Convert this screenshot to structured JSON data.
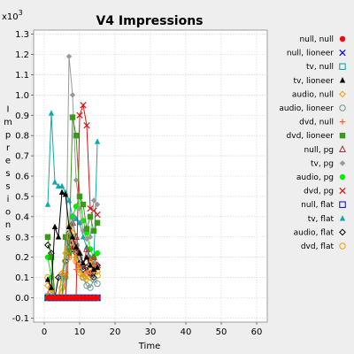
{
  "chart_data": {
    "type": "line",
    "title": "V4 Impressions",
    "xlabel": "Time",
    "ylabel": "Impressions",
    "y_multiplier_label": "x10^3",
    "y_multiplier_base": "x10",
    "y_multiplier_exp": "3",
    "xlim": [
      -3,
      63
    ],
    "ylim": [
      -0.12,
      1.32
    ],
    "x_ticks": [
      0,
      10,
      20,
      30,
      40,
      50,
      60
    ],
    "y_ticks": [
      -0.1,
      0.0,
      0.1,
      0.2,
      0.3,
      0.4,
      0.5,
      0.6,
      0.7,
      0.8,
      0.9,
      1.0,
      1.1,
      1.2,
      1.3
    ],
    "grid": true,
    "legend_position": "right",
    "series": [
      {
        "name": "null, null",
        "color": "#ff0000",
        "marker": "circle-filled",
        "x": [
          1,
          2,
          3,
          4,
          5,
          6,
          7,
          8,
          9,
          10,
          11,
          12,
          13,
          14,
          15
        ],
        "y": [
          0,
          0,
          0,
          0,
          0,
          0,
          0,
          0,
          0,
          0,
          0,
          0,
          0,
          0,
          0
        ]
      },
      {
        "name": "null, lioneer",
        "color": "#0000ff",
        "marker": "x",
        "x": [
          1,
          2,
          3,
          4,
          5,
          6,
          7,
          8,
          9,
          10,
          11,
          12,
          13,
          14,
          15
        ],
        "y": [
          0,
          0,
          0,
          0,
          0,
          0,
          0,
          0,
          0,
          0,
          0,
          0,
          0,
          0,
          0
        ]
      },
      {
        "name": "tv, null",
        "color": "#00a0a0",
        "marker": "square-open",
        "x": [
          1,
          2,
          3,
          4,
          5,
          6,
          7,
          8,
          9,
          10,
          11,
          12,
          13,
          14,
          15
        ],
        "y": [
          0,
          0,
          0,
          0,
          0,
          0,
          0,
          0,
          0,
          0,
          0,
          0,
          0,
          0,
          0
        ]
      },
      {
        "name": "tv, lioneer",
        "color": "#000000",
        "marker": "triangle-filled",
        "x": [
          1,
          2,
          3,
          4,
          5,
          6,
          7,
          8,
          9,
          10,
          11,
          12,
          13,
          14,
          15
        ],
        "y": [
          0.09,
          0.05,
          0.35,
          0.3,
          0.52,
          0.51,
          0.35,
          0.3,
          0.25,
          0.22,
          0.17,
          0.2,
          0.16,
          0.14,
          0.15
        ]
      },
      {
        "name": "audio, null",
        "color": "#f0a000",
        "marker": "diamond-open",
        "x": [
          1,
          2,
          3,
          4,
          5,
          6,
          7,
          8,
          9,
          10,
          11,
          12,
          13,
          14,
          15
        ],
        "y": [
          0.06,
          0.04,
          0,
          0,
          0.12,
          0.22,
          0.35,
          0.32,
          0.2,
          0.12,
          0.1,
          0.09,
          0.18,
          0.14,
          0.13
        ]
      },
      {
        "name": "audio, lioneer",
        "color": "#6a9696",
        "marker": "circle-open",
        "x": [
          1,
          2,
          3,
          4,
          5,
          6,
          7,
          8,
          9,
          10,
          11,
          12,
          13,
          14,
          15
        ],
        "y": [
          0,
          0.03,
          0,
          0,
          0.1,
          0.18,
          0.3,
          0.4,
          0.26,
          0.2,
          0.1,
          0.06,
          0.05,
          0.09,
          0.07
        ]
      },
      {
        "name": "dvd, null",
        "color": "#ff6633",
        "marker": "plus",
        "x": [
          1,
          2,
          3,
          4,
          5,
          6,
          7,
          8,
          9,
          10,
          11,
          12,
          13,
          14,
          15
        ],
        "y": [
          0.02,
          0,
          0,
          0,
          0,
          0.1,
          0.2,
          0.28,
          0.14,
          0.16,
          0.11,
          0.13,
          0.12,
          0.16,
          0.15
        ]
      },
      {
        "name": "dvd, lioneer",
        "color": "#3a9a1a",
        "marker": "square-filled",
        "x": [
          1,
          2,
          3,
          4,
          5,
          6,
          7,
          8,
          9,
          10,
          11,
          12,
          13,
          14,
          15
        ],
        "y": [
          0.3,
          0.2,
          0,
          0,
          0,
          0.3,
          0.22,
          0.89,
          0.8,
          0.5,
          0.46,
          0.34,
          0.4,
          0.33,
          0.37
        ]
      },
      {
        "name": "null, pg",
        "color": "#aa3333",
        "marker": "triangle-open",
        "x": [
          1,
          2,
          3,
          4,
          5,
          6,
          7,
          8,
          9,
          10,
          11,
          12,
          13,
          14,
          15
        ],
        "y": [
          0,
          0,
          0,
          0,
          0,
          0,
          0.25,
          0.37,
          0.3,
          0.22,
          0.16,
          0.24,
          0.18,
          0.2,
          0.16
        ]
      },
      {
        "name": "tv, pg",
        "color": "#999999",
        "marker": "diamond-filled",
        "x": [
          1,
          2,
          3,
          4,
          5,
          6,
          7,
          8,
          9,
          10,
          11,
          12,
          13,
          14,
          15
        ],
        "y": [
          0,
          0,
          0,
          0,
          0,
          0,
          1.19,
          1.0,
          0.58,
          0.44,
          0.33,
          0.29,
          0.3,
          0.48,
          0.46
        ]
      },
      {
        "name": "audio, pg",
        "color": "#00ee00",
        "marker": "circle-filled",
        "x": [
          1,
          2,
          3,
          4,
          5,
          6,
          7,
          8,
          9,
          10,
          11,
          12,
          13,
          14,
          15
        ],
        "y": [
          0.2,
          0.1,
          0,
          0,
          0,
          0.1,
          0.22,
          0.4,
          0.45,
          0.5,
          0.38,
          0.32,
          0.24,
          0.2,
          0.22
        ]
      },
      {
        "name": "dvd, pg",
        "color": "#dd1111",
        "marker": "x",
        "x": [
          1,
          2,
          3,
          4,
          5,
          6,
          7,
          8,
          9,
          10,
          11,
          12,
          13,
          14,
          15
        ],
        "y": [
          0,
          0,
          0,
          0,
          0,
          0,
          0,
          0,
          0,
          0.9,
          0.95,
          0.85,
          0.44,
          0.43,
          0.41
        ]
      },
      {
        "name": "null, flat",
        "color": "#0000cc",
        "marker": "square-open",
        "x": [
          1,
          2,
          3,
          4,
          5,
          6,
          7,
          8,
          9,
          10,
          11,
          12,
          13,
          14,
          15
        ],
        "y": [
          0,
          0,
          0,
          0,
          0,
          0,
          0,
          0,
          0,
          0,
          0,
          0,
          0,
          0,
          0
        ]
      },
      {
        "name": "tv, flat",
        "color": "#11aaaa",
        "marker": "triangle-filled",
        "x": [
          1,
          2,
          3,
          4,
          5,
          6,
          7,
          8,
          9,
          10,
          11,
          12,
          13,
          14,
          15
        ],
        "y": [
          0.46,
          0.91,
          0.57,
          0.55,
          0.55,
          0.52,
          0.48,
          0.4,
          0.39,
          0.37,
          0.3,
          0.25,
          0.2,
          0.17,
          0.77
        ]
      },
      {
        "name": "audio, flat",
        "color": "#000000",
        "marker": "diamond-open",
        "x": [
          1,
          2,
          3,
          4,
          5,
          6,
          7,
          8,
          9,
          10,
          11,
          12,
          13,
          14,
          15
        ],
        "y": [
          0.26,
          0.22,
          0,
          0.1,
          0.12,
          0.18,
          0.32,
          0.24,
          0.22,
          0.17,
          0.14,
          0.15,
          0.12,
          0.1,
          0.16
        ]
      },
      {
        "name": "dvd, flat",
        "color": "#f0a000",
        "marker": "circle-open",
        "x": [
          1,
          2,
          3,
          4,
          5,
          6,
          7,
          8,
          9,
          10,
          11,
          12,
          13,
          14,
          15
        ],
        "y": [
          0.1,
          0.05,
          0,
          0,
          0.05,
          0.12,
          0.2,
          0.26,
          0.18,
          0.14,
          0.1,
          0.12,
          0.1,
          0.13,
          0.11
        ]
      }
    ]
  }
}
